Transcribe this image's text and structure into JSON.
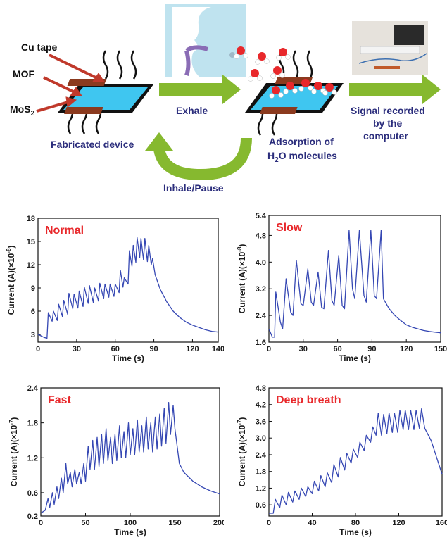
{
  "schematic": {
    "labels": {
      "cu_tape": "Cu tape",
      "mof": "MOF",
      "mos2": "MoS",
      "mos2_sub": "2",
      "fabricated": "Fabricated device",
      "exhale": "Exhale",
      "adsorption_line1": "Adsorption of",
      "adsorption_line2_pre": "H",
      "adsorption_line2_sub": "2",
      "adsorption_line2_post": "O molecules",
      "signal_line1": "Signal recorded",
      "signal_line2": "by the",
      "signal_line3": "computer",
      "inhale": "Inhale/Pause"
    },
    "colors": {
      "label_text": "#2b2d7c",
      "arrow_green": "#86b92f",
      "arrow_red": "#c0392b",
      "device_blue": "#3fc6f0",
      "device_black": "#111111",
      "cu_tape": "#8b3a1e"
    }
  },
  "chart_data": [
    {
      "type": "line",
      "panel": "Normal",
      "label_color": "#e8282b",
      "line_color": "#3547b3",
      "xlabel": "Time (s)",
      "ylabel_main": "Current (A)(×10",
      "ylabel_exp": "-8",
      "ylabel_end": ")",
      "xlim": [
        0,
        140
      ],
      "ylim": [
        2,
        18
      ],
      "xticks": [
        "0",
        "30",
        "60",
        "90",
        "120",
        "140"
      ],
      "xtick_values": [
        0,
        30,
        60,
        90,
        120,
        140
      ],
      "yticks": [
        "3",
        "6",
        "9",
        "12",
        "15",
        "18"
      ],
      "ytick_values": [
        3,
        6,
        9,
        12,
        15,
        18
      ],
      "series": [
        {
          "x": [
            0,
            5,
            7,
            8,
            11,
            12,
            15,
            16,
            19,
            20,
            23,
            24,
            27,
            28,
            31,
            32,
            35,
            36,
            39,
            40,
            43,
            44,
            47,
            48,
            51,
            52,
            55,
            56,
            59,
            60,
            63,
            64,
            66,
            67,
            70,
            71,
            73,
            74,
            76,
            77,
            79,
            80,
            82,
            83,
            85,
            86,
            88,
            89,
            91,
            95,
            100,
            105,
            110,
            115,
            120,
            125,
            130,
            135,
            140
          ],
          "y": [
            3,
            2.6,
            2.5,
            5.8,
            4.7,
            6.0,
            4.8,
            6.9,
            5.3,
            7.4,
            5.6,
            8.3,
            6.3,
            8.2,
            6.4,
            8.6,
            6.6,
            9.1,
            7.0,
            9.3,
            7.1,
            9.0,
            7.3,
            9.6,
            7.6,
            9.5,
            7.8,
            9.5,
            7.9,
            9.5,
            8.4,
            11.3,
            9.1,
            10.3,
            9.5,
            13.8,
            11.8,
            14.5,
            12.3,
            15.5,
            12.9,
            15.4,
            12.6,
            15.4,
            12.4,
            14.5,
            12.0,
            12.8,
            10.7,
            8.8,
            7.2,
            6.0,
            5.2,
            4.6,
            4.2,
            3.9,
            3.6,
            3.4,
            3.3
          ]
        }
      ]
    },
    {
      "type": "line",
      "panel": "Slow",
      "label_color": "#e8282b",
      "line_color": "#3547b3",
      "xlabel": "Time (s)",
      "ylabel_main": "Current (A)(×10",
      "ylabel_exp": "-8",
      "ylabel_end": ")",
      "xlim": [
        0,
        150
      ],
      "ylim": [
        1.6,
        5.4
      ],
      "xticks": [
        "0",
        "30",
        "60",
        "90",
        "120",
        "150"
      ],
      "xtick_values": [
        0,
        30,
        60,
        90,
        120,
        150
      ],
      "yticks": [
        "1.6",
        "2.4",
        "3.2",
        "4.0",
        "4.8",
        "5.4"
      ],
      "ytick_values": [
        1.6,
        2.4,
        3.2,
        4.0,
        4.8,
        5.4
      ],
      "series": [
        {
          "x": [
            0,
            3,
            5,
            6,
            10,
            12,
            15,
            19,
            21,
            24,
            28,
            30,
            34,
            37,
            39,
            43,
            46,
            48,
            52,
            55,
            57,
            61,
            64,
            66,
            70,
            73,
            75,
            79,
            83,
            85,
            89,
            92,
            94,
            98,
            100,
            105,
            110,
            115,
            120,
            125,
            130,
            135,
            140,
            145,
            150
          ],
          "y": [
            2.0,
            1.75,
            1.75,
            3.1,
            2.2,
            2.0,
            3.5,
            2.5,
            2.4,
            4.05,
            2.75,
            2.7,
            3.8,
            2.8,
            2.7,
            3.7,
            2.65,
            2.6,
            4.35,
            2.85,
            2.7,
            4.2,
            2.7,
            2.6,
            4.95,
            3.2,
            2.9,
            4.95,
            3.0,
            2.8,
            4.95,
            3.0,
            2.9,
            4.95,
            2.9,
            2.6,
            2.4,
            2.25,
            2.12,
            2.05,
            2.0,
            1.95,
            1.92,
            1.9,
            1.88
          ]
        }
      ]
    },
    {
      "type": "line",
      "panel": "Fast",
      "label_color": "#e8282b",
      "line_color": "#3547b3",
      "xlabel": "Time (s)",
      "ylabel_main": "Current (A)(×10",
      "ylabel_exp": "-7",
      "ylabel_end": ")",
      "xlim": [
        0,
        200
      ],
      "ylim": [
        0.2,
        2.4
      ],
      "xticks": [
        "0",
        "50",
        "100",
        "150",
        "200"
      ],
      "xtick_values": [
        0,
        50,
        100,
        150,
        200
      ],
      "yticks": [
        "0.2",
        "0.6",
        "1.2",
        "1.8",
        "2.4"
      ],
      "ytick_values": [
        0.2,
        0.6,
        1.2,
        1.8,
        2.4
      ],
      "series": [
        {
          "x": [
            0,
            5,
            8,
            10,
            13,
            15,
            18,
            20,
            23,
            25,
            28,
            30,
            33,
            35,
            38,
            40,
            43,
            45,
            48,
            50,
            53,
            55,
            58,
            60,
            63,
            65,
            68,
            70,
            73,
            75,
            78,
            80,
            83,
            85,
            88,
            90,
            93,
            95,
            98,
            100,
            103,
            105,
            108,
            110,
            113,
            115,
            118,
            120,
            123,
            125,
            128,
            130,
            133,
            135,
            138,
            140,
            143,
            145,
            148,
            150,
            155,
            160,
            170,
            180,
            190,
            200
          ],
          "y": [
            0.25,
            0.3,
            0.5,
            0.35,
            0.6,
            0.4,
            0.7,
            0.5,
            0.85,
            0.6,
            1.1,
            0.75,
            0.95,
            0.7,
            1.0,
            0.75,
            0.95,
            0.75,
            1.1,
            0.8,
            1.4,
            1.0,
            1.5,
            1.0,
            1.55,
            1.05,
            1.6,
            1.1,
            1.7,
            1.15,
            1.55,
            1.1,
            1.6,
            1.15,
            1.75,
            1.2,
            1.65,
            1.2,
            1.8,
            1.25,
            1.7,
            1.25,
            1.85,
            1.3,
            1.75,
            1.3,
            1.9,
            1.35,
            1.8,
            1.3,
            1.9,
            1.35,
            1.95,
            1.4,
            2.05,
            1.45,
            2.15,
            1.6,
            2.1,
            1.7,
            1.1,
            0.95,
            0.8,
            0.7,
            0.63,
            0.58
          ]
        }
      ]
    },
    {
      "type": "line",
      "panel": "Deep breath",
      "label_color": "#e8282b",
      "line_color": "#3547b3",
      "xlabel": "Time (s)",
      "ylabel_main": "Current (A)(×10",
      "ylabel_exp": "-7",
      "ylabel_end": ")",
      "xlim": [
        0,
        160
      ],
      "ylim": [
        0.2,
        4.8
      ],
      "xticks": [
        "0",
        "40",
        "80",
        "120",
        "160"
      ],
      "xtick_values": [
        0,
        40,
        80,
        120,
        160
      ],
      "yticks": [
        "0.6",
        "1.2",
        "1.8",
        "2.4",
        "3.0",
        "3.6",
        "4.2",
        "4.8"
      ],
      "ytick_values": [
        0.6,
        1.2,
        1.8,
        2.4,
        3.0,
        3.6,
        4.2,
        4.8
      ],
      "series": [
        {
          "x": [
            0,
            4,
            6,
            10,
            12,
            16,
            18,
            22,
            24,
            28,
            30,
            34,
            36,
            40,
            42,
            46,
            48,
            52,
            54,
            58,
            60,
            64,
            66,
            70,
            72,
            76,
            78,
            82,
            84,
            88,
            90,
            94,
            96,
            99,
            101,
            104,
            106,
            109,
            111,
            114,
            116,
            119,
            121,
            124,
            126,
            129,
            131,
            134,
            136,
            139,
            141,
            144,
            146,
            150,
            155,
            160
          ],
          "y": [
            0.3,
            0.3,
            0.8,
            0.5,
            0.95,
            0.6,
            1.05,
            0.7,
            1.1,
            0.8,
            1.2,
            0.9,
            1.25,
            1.0,
            1.45,
            1.1,
            1.65,
            1.25,
            1.75,
            1.4,
            2.05,
            1.6,
            2.3,
            1.85,
            2.45,
            2.1,
            2.6,
            2.3,
            2.85,
            2.55,
            3.1,
            2.85,
            3.4,
            3.1,
            3.9,
            3.1,
            3.85,
            3.15,
            3.9,
            3.2,
            3.9,
            3.2,
            4.0,
            3.3,
            4.0,
            3.3,
            4.0,
            3.3,
            4.0,
            3.35,
            4.05,
            3.35,
            3.2,
            2.9,
            2.3,
            1.7
          ]
        }
      ]
    }
  ]
}
